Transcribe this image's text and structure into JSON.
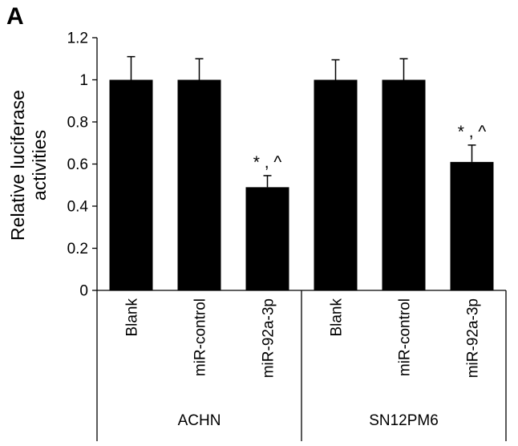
{
  "panel_label": "A",
  "chart_data": {
    "type": "bar",
    "title": "",
    "ylabel": "Relative luciferase activities",
    "ylabel_lines": [
      "Relative luciferase",
      "activities"
    ],
    "ylim": [
      0,
      1.2
    ],
    "yticks": [
      0,
      0.2,
      0.4,
      0.6,
      0.8,
      1,
      1.2
    ],
    "ytick_labels": [
      "0",
      "0.2",
      "0.4",
      "0.6",
      "0.8",
      "1",
      "1.2"
    ],
    "grid": false,
    "categories": [
      "Blank",
      "miR-control",
      "miR-92a-3p",
      "Blank",
      "miR-control",
      "miR-92a-3p"
    ],
    "groups": [
      {
        "label": "ACHN",
        "start": 0,
        "count": 3
      },
      {
        "label": "SN12PM6",
        "start": 3,
        "count": 3
      }
    ],
    "values": [
      1,
      1,
      0.49,
      1,
      1,
      0.61
    ],
    "errors": [
      0.11,
      0.1,
      0.055,
      0.095,
      0.1,
      0.08
    ],
    "annotations": [
      "",
      "",
      "* , ^",
      "",
      "",
      "* , ^"
    ],
    "bar_color": "#000000"
  }
}
